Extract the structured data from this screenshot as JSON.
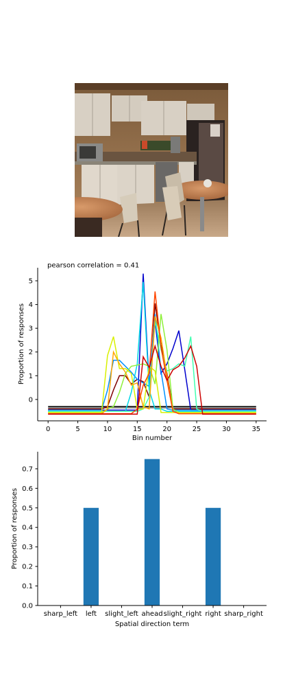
{
  "image": {
    "subject": "kitchen-photo"
  },
  "chart_data": [
    {
      "type": "line",
      "title": "pearson correlation = 0.41",
      "xlabel": "Bin number",
      "ylabel": "Proportion of responses",
      "xlim": [
        -1.75,
        36.75
      ],
      "ylim": [
        -0.9,
        5.55
      ],
      "xticks": [
        0,
        5,
        10,
        15,
        20,
        25,
        30,
        35
      ],
      "yticks": [
        0,
        1,
        2,
        3,
        4,
        5
      ],
      "grid": false,
      "x": [
        0,
        1,
        2,
        3,
        4,
        5,
        6,
        7,
        8,
        9,
        10,
        11,
        12,
        13,
        14,
        15,
        16,
        17,
        18,
        19,
        20,
        21,
        22,
        23,
        24,
        25,
        26,
        27,
        28,
        29,
        30,
        31,
        32,
        33,
        34,
        35
      ],
      "series": [
        {
          "color": "#000000",
          "values": [
            -0.3,
            -0.3,
            -0.3,
            -0.3,
            -0.3,
            -0.3,
            -0.3,
            -0.3,
            -0.3,
            -0.3,
            -0.3,
            -0.3,
            -0.3,
            -0.3,
            -0.3,
            -0.3,
            -0.3,
            -0.3,
            -0.3,
            -0.3,
            -0.3,
            -0.3,
            -0.3,
            -0.3,
            -0.3,
            -0.3,
            -0.3,
            -0.3,
            -0.3,
            -0.3,
            -0.3,
            -0.3,
            -0.3,
            -0.3,
            -0.3,
            -0.3
          ]
        },
        {
          "color": "#6a6a6a",
          "values": [
            -0.35,
            -0.35,
            -0.35,
            -0.35,
            -0.35,
            -0.35,
            -0.35,
            -0.35,
            -0.35,
            -0.35,
            -0.35,
            -0.35,
            -0.35,
            -0.35,
            -0.35,
            -0.35,
            -0.35,
            -0.35,
            -0.35,
            -0.35,
            -0.35,
            -0.35,
            -0.35,
            -0.35,
            -0.35,
            -0.35,
            -0.35,
            -0.35,
            -0.35,
            -0.35,
            -0.35,
            -0.35,
            -0.35,
            -0.35,
            -0.35,
            -0.35
          ]
        },
        {
          "color": "#7f0000",
          "values": [
            -0.4,
            -0.4,
            -0.4,
            -0.4,
            -0.4,
            -0.4,
            -0.4,
            -0.4,
            -0.4,
            -0.4,
            -0.3,
            0.4,
            1.0,
            1.0,
            0.65,
            0.85,
            0.75,
            0.1,
            4.05,
            2.3,
            1.1,
            -0.4,
            -0.4,
            -0.4,
            -0.4,
            -0.4,
            -0.4,
            -0.4,
            -0.4,
            -0.4,
            -0.4,
            -0.4,
            -0.4,
            -0.4,
            -0.4,
            -0.4
          ]
        },
        {
          "color": "#0000cd",
          "values": [
            -0.45,
            -0.45,
            -0.45,
            -0.45,
            -0.45,
            -0.45,
            -0.45,
            -0.45,
            -0.45,
            -0.45,
            -0.45,
            -0.45,
            -0.45,
            -0.45,
            -0.45,
            -0.45,
            5.3,
            0.6,
            3.3,
            1.1,
            1.5,
            2.15,
            2.9,
            1.25,
            -0.45,
            -0.45,
            -0.45,
            -0.45,
            -0.45,
            -0.45,
            -0.45,
            -0.45,
            -0.45,
            -0.45,
            -0.45,
            -0.45
          ]
        },
        {
          "color": "#0090ff",
          "values": [
            -0.45,
            -0.45,
            -0.45,
            -0.45,
            -0.45,
            -0.45,
            -0.45,
            -0.45,
            -0.45,
            -0.45,
            0.4,
            1.65,
            1.65,
            1.4,
            1.15,
            0.85,
            0.7,
            0.55,
            3.6,
            1.2,
            -0.4,
            -0.45,
            -0.45,
            -0.45,
            -0.45,
            -0.45,
            -0.45,
            -0.45,
            -0.45,
            -0.45,
            -0.45,
            -0.45,
            -0.45,
            -0.45,
            -0.45,
            -0.45
          ]
        },
        {
          "color": "#00d8e8",
          "values": [
            -0.5,
            -0.5,
            -0.5,
            -0.5,
            -0.5,
            -0.5,
            -0.5,
            -0.5,
            -0.5,
            -0.5,
            -0.5,
            -0.5,
            -0.5,
            -0.5,
            0.3,
            1.5,
            4.95,
            0.4,
            -0.4,
            -0.4,
            -0.5,
            -0.5,
            -0.5,
            -0.5,
            -0.5,
            -0.5,
            -0.5,
            -0.5,
            -0.5,
            -0.5,
            -0.5,
            -0.5,
            -0.5,
            -0.5,
            -0.5,
            -0.5
          ]
        },
        {
          "color": "#40ffb0",
          "values": [
            -0.5,
            -0.5,
            -0.5,
            -0.5,
            -0.5,
            -0.5,
            -0.5,
            -0.5,
            -0.5,
            -0.5,
            -0.5,
            -0.5,
            -0.5,
            -0.5,
            -0.5,
            -0.5,
            -0.4,
            0.1,
            3.3,
            2.1,
            1.2,
            1.3,
            1.5,
            1.4,
            2.65,
            -0.4,
            -0.5,
            -0.5,
            -0.5,
            -0.5,
            -0.5,
            -0.5,
            -0.5,
            -0.5,
            -0.5,
            -0.5
          ]
        },
        {
          "color": "#8ef03a",
          "values": [
            -0.55,
            -0.55,
            -0.55,
            -0.55,
            -0.55,
            -0.55,
            -0.55,
            -0.55,
            -0.55,
            -0.55,
            -0.4,
            -0.3,
            0.3,
            1.1,
            1.4,
            1.45,
            1.5,
            1.4,
            0.65,
            3.6,
            2.1,
            -0.4,
            -0.55,
            -0.55,
            -0.55,
            -0.55,
            -0.55,
            -0.55,
            -0.55,
            -0.55,
            -0.55,
            -0.55,
            -0.55,
            -0.55,
            -0.55,
            -0.55
          ]
        },
        {
          "color": "#d8f000",
          "values": [
            -0.55,
            -0.55,
            -0.55,
            -0.55,
            -0.55,
            -0.55,
            -0.55,
            -0.55,
            -0.55,
            -0.55,
            1.85,
            2.65,
            1.3,
            1.3,
            1.1,
            -0.4,
            -0.4,
            1.4,
            1.2,
            -0.55,
            -0.55,
            -0.55,
            -0.55,
            -0.55,
            -0.55,
            -0.55,
            -0.55,
            -0.55,
            -0.55,
            -0.55,
            -0.55,
            -0.55,
            -0.55,
            -0.55,
            -0.55,
            -0.55
          ]
        },
        {
          "color": "#ffa500",
          "values": [
            -0.6,
            -0.6,
            -0.6,
            -0.6,
            -0.6,
            -0.6,
            -0.6,
            -0.6,
            -0.6,
            -0.6,
            -0.4,
            2.0,
            1.5,
            1.15,
            0.6,
            0.7,
            -0.3,
            -0.4,
            3.5,
            2.6,
            1.0,
            -0.5,
            -0.6,
            -0.6,
            -0.6,
            -0.6,
            -0.6,
            -0.6,
            -0.6,
            -0.6,
            -0.6,
            -0.6,
            -0.6,
            -0.6,
            -0.6,
            -0.6
          ]
        },
        {
          "color": "#ff4500",
          "values": [
            -0.6,
            -0.6,
            -0.6,
            -0.6,
            -0.6,
            -0.6,
            -0.6,
            -0.6,
            -0.6,
            -0.6,
            -0.6,
            -0.6,
            -0.6,
            -0.6,
            -0.6,
            -0.4,
            0.6,
            1.1,
            4.55,
            2.2,
            0.8,
            -0.5,
            -0.6,
            -0.6,
            -0.6,
            -0.6,
            -0.6,
            -0.6,
            -0.6,
            -0.6,
            -0.6,
            -0.6,
            -0.6,
            -0.6,
            -0.6,
            -0.6
          ]
        },
        {
          "color": "#cc0000",
          "values": [
            -0.62,
            -0.62,
            -0.62,
            -0.62,
            -0.62,
            -0.62,
            -0.62,
            -0.62,
            -0.62,
            -0.62,
            -0.62,
            -0.62,
            -0.62,
            -0.62,
            -0.62,
            -0.62,
            1.8,
            1.35,
            2.25,
            1.4,
            0.8,
            1.25,
            1.4,
            1.75,
            2.25,
            1.4,
            -0.62,
            -0.62,
            -0.62,
            -0.62,
            -0.62,
            -0.62,
            -0.62,
            -0.62,
            -0.62,
            -0.62
          ]
        }
      ]
    },
    {
      "type": "bar",
      "title": "",
      "xlabel": "Spatial direction term",
      "ylabel": "Proportion of responses",
      "categories": [
        "sharp_left",
        "left",
        "slight_left",
        "ahead",
        "slight_right",
        "right",
        "sharp_right"
      ],
      "values": [
        0.0,
        0.5,
        0.0,
        0.75,
        0.0,
        0.5,
        0.0
      ],
      "ylim": [
        0,
        0.7875
      ],
      "yticks": [
        "0.0",
        "0.1",
        "0.2",
        "0.3",
        "0.4",
        "0.5",
        "0.6",
        "0.7"
      ],
      "color": "#1f77b4",
      "grid": false
    }
  ]
}
